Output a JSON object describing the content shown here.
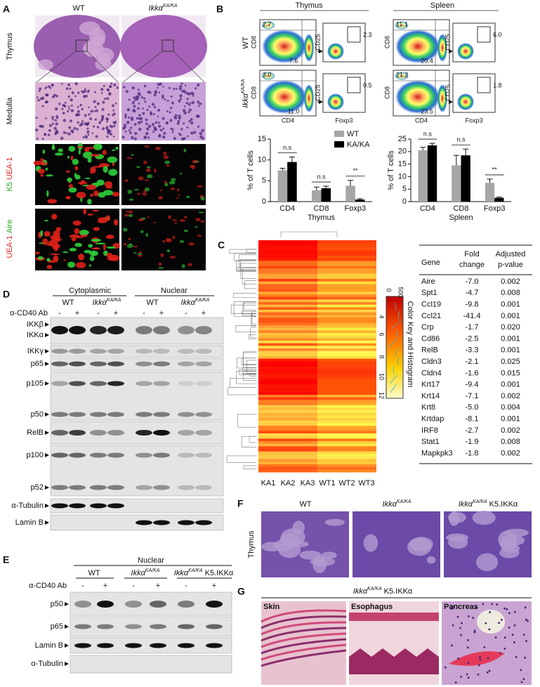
{
  "labels": {
    "wt": "WT",
    "ikk": "Ikkα",
    "ka": "KA/KA",
    "k5": "K5.IKKα",
    "cd40": "α-CD40 Ab",
    "minus": "-",
    "plus": "+"
  },
  "panel_a": {
    "letter": "A",
    "rows": [
      "Thymus",
      "Medulla"
    ],
    "k5": "K5",
    "uea1": "UEA-1",
    "aire": "Aire"
  },
  "panel_b": {
    "letter": "B",
    "flow": [
      {
        "tissue": "Thymus",
        "wt": [
          "2.7",
          "7.6",
          "2.3"
        ],
        "ka": [
          "3.0",
          "11.0",
          "0.5"
        ]
      },
      {
        "tissue": "Spleen",
        "wt": [
          "11.1",
          "20.4",
          "6.0"
        ],
        "ka": [
          "21.2",
          "23.5",
          "1.8"
        ]
      }
    ],
    "axes": {
      "cd8": "CD8",
      "cd4": "CD4",
      "cd25": "CD25",
      "foxp3": "Foxp3"
    },
    "charts": [
      {
        "type": "bar",
        "ylabel": "% of T cells",
        "xlabel": "Thymus",
        "categories": [
          "CD4",
          "CD8",
          "Foxp3"
        ],
        "series": [
          {
            "name": "WT",
            "color": "#a6a6a6",
            "values": [
              7.5,
              2.7,
              3.8
            ],
            "errors": [
              0.5,
              0.8,
              1.3
            ]
          },
          {
            "name": "KA/KA",
            "color": "#000000",
            "values": [
              9.5,
              3.2,
              0.5
            ],
            "errors": [
              1.2,
              0.5,
              0.2
            ]
          }
        ],
        "significance": [
          "n.s",
          "n.s",
          "**"
        ],
        "ylim": [
          0,
          15
        ],
        "yticks": [
          0,
          5,
          10,
          15
        ]
      },
      {
        "type": "bar",
        "ylabel": "% of T cells",
        "xlabel": "Spleen",
        "categories": [
          "CD4",
          "CD8",
          "Foxp3"
        ],
        "series": [
          {
            "color": "#a6a6a6",
            "values": [
              20.5,
              14.5,
              7.5
            ],
            "errors": [
              1.2,
              4.0,
              1.5
            ]
          },
          {
            "color": "#000000",
            "values": [
              22.5,
              18.5,
              1.5
            ],
            "errors": [
              0.8,
              2.5,
              0.3
            ]
          }
        ],
        "significance": [
          "n.s",
          "n.s",
          "**"
        ],
        "ylim": [
          0,
          25
        ],
        "yticks": [
          0,
          5,
          10,
          15,
          20,
          25
        ]
      }
    ]
  },
  "panel_c": {
    "letter": "C",
    "samples": [
      "KA1",
      "KA2",
      "KA3",
      "WT1",
      "WT2",
      "WT3"
    ],
    "color_key": {
      "title": "Color Key and Histogram",
      "top": "500",
      "ticks": [
        "0",
        "4",
        "6",
        "8",
        "10",
        "12"
      ]
    },
    "table": {
      "header": [
        "Gene",
        [
          "Fold",
          "change"
        ],
        [
          "Adjusted",
          "p-value"
        ]
      ],
      "rows": [
        [
          "Aire",
          "-7.0",
          "0.002"
        ],
        [
          "Spt1",
          "-4.7",
          "0.008"
        ],
        [
          "Ccl19",
          "-9.8",
          "0.001"
        ],
        [
          "Ccl21",
          "-41.4",
          "0.001"
        ],
        [
          "Crp",
          "-1.7",
          "0.020"
        ],
        [
          "Cd86",
          "-2.5",
          "0.001"
        ],
        [
          "RelB",
          "-3.3",
          "0.001"
        ],
        [
          "Cldn3",
          "-2.1",
          "0.025"
        ],
        [
          "Cldn4",
          "-1.6",
          "0.015"
        ],
        [
          "Krt17",
          "-9.4",
          "0.001"
        ],
        [
          "Krt14",
          "-7.1",
          "0.002"
        ],
        [
          "Krt8",
          "-5.0",
          "0.004"
        ],
        [
          "Krtdap",
          "-8.1",
          "0.001"
        ],
        [
          "IRF8",
          "-2.7",
          "0.002"
        ],
        [
          "Stat1",
          "-1.9",
          "0.008"
        ],
        [
          "Mapkpk3",
          "-1.8",
          "0.002"
        ]
      ]
    }
  },
  "panel_d": {
    "letter": "D",
    "fractions": [
      "Cytoplasmic",
      "Nuclear"
    ],
    "bands": [
      "IKKβ",
      "IKKα",
      "IKKγ",
      "p65",
      "p105",
      "p50",
      "RelB",
      "p100",
      "p52",
      "α-Tubulin",
      "Lamin B"
    ]
  },
  "panel_e": {
    "letter": "E",
    "fraction": "Nuclear",
    "bands": [
      "p50",
      "p65",
      "Lamin B",
      "α-Tubulin"
    ]
  },
  "panel_f": {
    "letter": "F",
    "tissue": "Thymus"
  },
  "panel_g": {
    "letter": "G",
    "tissues": [
      "Skin",
      "Esophagus",
      "Pancreas"
    ]
  }
}
